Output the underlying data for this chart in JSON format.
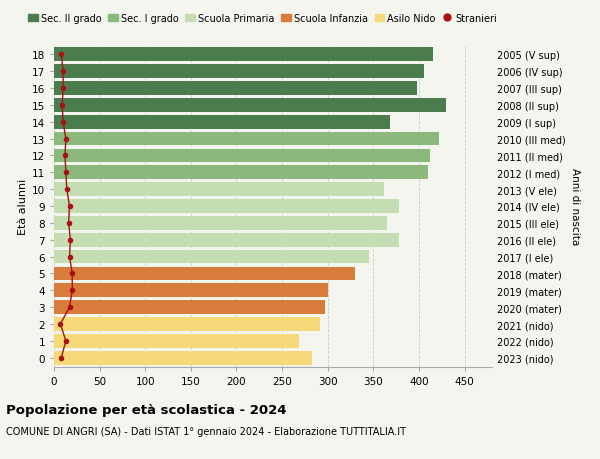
{
  "ages": [
    18,
    17,
    16,
    15,
    14,
    13,
    12,
    11,
    10,
    9,
    8,
    7,
    6,
    5,
    4,
    3,
    2,
    1,
    0
  ],
  "bar_values": [
    415,
    405,
    398,
    430,
    368,
    422,
    412,
    410,
    362,
    378,
    365,
    378,
    345,
    330,
    300,
    297,
    292,
    268,
    283
  ],
  "stranieri_values": [
    8,
    10,
    10,
    9,
    10,
    13,
    12,
    13,
    14,
    17,
    16,
    18,
    17,
    20,
    20,
    17,
    7,
    13,
    8
  ],
  "right_labels": [
    "2005 (V sup)",
    "2006 (IV sup)",
    "2007 (III sup)",
    "2008 (II sup)",
    "2009 (I sup)",
    "2010 (III med)",
    "2011 (II med)",
    "2012 (I med)",
    "2013 (V ele)",
    "2014 (IV ele)",
    "2015 (III ele)",
    "2016 (II ele)",
    "2017 (I ele)",
    "2018 (mater)",
    "2019 (mater)",
    "2020 (mater)",
    "2021 (nido)",
    "2022 (nido)",
    "2023 (nido)"
  ],
  "bar_colors": [
    "#4a7c4e",
    "#4a7c4e",
    "#4a7c4e",
    "#4a7c4e",
    "#4a7c4e",
    "#8ab87d",
    "#8ab87d",
    "#8ab87d",
    "#c5ddb3",
    "#c5ddb3",
    "#c5ddb3",
    "#c5ddb3",
    "#c5ddb3",
    "#d97b3a",
    "#d97b3a",
    "#d97b3a",
    "#f5d97a",
    "#f5d97a",
    "#f5d97a"
  ],
  "legend_labels": [
    "Sec. II grado",
    "Sec. I grado",
    "Scuola Primaria",
    "Scuola Infanzia",
    "Asilo Nido",
    "Stranieri"
  ],
  "legend_colors": [
    "#4a7c4e",
    "#8ab87d",
    "#c5ddb3",
    "#d97b3a",
    "#f5d97a",
    "#a82020"
  ],
  "title": "Popolazione per età scolastica - 2024",
  "subtitle": "COMUNE DI ANGRI (SA) - Dati ISTAT 1° gennaio 2024 - Elaborazione TUTTITALIA.IT",
  "ylabel_left": "Età alunni",
  "ylabel_right": "Anni di nascita",
  "xlim": [
    0,
    480
  ],
  "xticks": [
    0,
    50,
    100,
    150,
    200,
    250,
    300,
    350,
    400,
    450
  ],
  "background_color": "#f5f5ef",
  "grid_color": "#cccccc",
  "stranieri_color": "#aa1111",
  "bar_height": 0.82
}
